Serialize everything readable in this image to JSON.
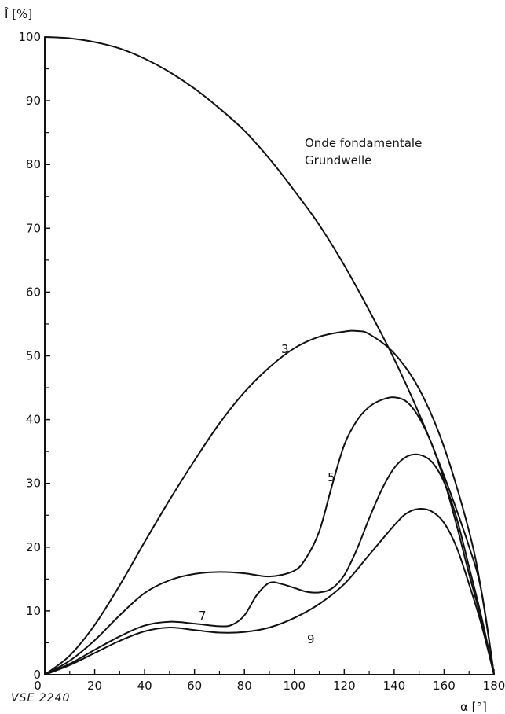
{
  "chart_data": {
    "type": "line",
    "title": "",
    "ylabel": "Î [%]",
    "xlabel": "α [°]",
    "xlim": [
      0,
      180
    ],
    "ylim": [
      0,
      100
    ],
    "xticks": [
      0,
      20,
      40,
      60,
      80,
      100,
      120,
      140,
      160,
      180
    ],
    "yticks": [
      0,
      10,
      20,
      30,
      40,
      50,
      60,
      70,
      80,
      90,
      100
    ],
    "grid": false,
    "annotation": "VSE 2240",
    "series": [
      {
        "name": "Onde fondamentale\nGrundwelle",
        "name_lines": [
          "Onde fondamentale",
          "Grundwelle"
        ],
        "points": [
          [
            0,
            100
          ],
          [
            10,
            99.8
          ],
          [
            20,
            99.2
          ],
          [
            30,
            98.2
          ],
          [
            40,
            96.6
          ],
          [
            50,
            94.5
          ],
          [
            60,
            91.9
          ],
          [
            70,
            88.8
          ],
          [
            80,
            85.3
          ],
          [
            90,
            80.9
          ],
          [
            100,
            75.9
          ],
          [
            110,
            70.5
          ],
          [
            120,
            64.2
          ],
          [
            130,
            57.1
          ],
          [
            140,
            49.5
          ],
          [
            150,
            40.9
          ],
          [
            160,
            31.2
          ],
          [
            170,
            20.1
          ],
          [
            175,
            13.0
          ],
          [
            180,
            0
          ]
        ]
      },
      {
        "name": "3",
        "points": [
          [
            0,
            0
          ],
          [
            10,
            3.0
          ],
          [
            20,
            7.8
          ],
          [
            30,
            14.0
          ],
          [
            40,
            20.8
          ],
          [
            50,
            27.4
          ],
          [
            60,
            33.6
          ],
          [
            70,
            39.4
          ],
          [
            80,
            44.3
          ],
          [
            90,
            48.2
          ],
          [
            100,
            51.2
          ],
          [
            110,
            53.0
          ],
          [
            120,
            53.8
          ],
          [
            125,
            53.9
          ],
          [
            130,
            53.4
          ],
          [
            140,
            50.4
          ],
          [
            150,
            44.8
          ],
          [
            160,
            35.7
          ],
          [
            170,
            22.5
          ],
          [
            175,
            13.0
          ],
          [
            180,
            0
          ]
        ]
      },
      {
        "name": "5",
        "points": [
          [
            0,
            0
          ],
          [
            10,
            2.2
          ],
          [
            20,
            5.4
          ],
          [
            30,
            9.3
          ],
          [
            40,
            12.8
          ],
          [
            50,
            14.8
          ],
          [
            60,
            15.8
          ],
          [
            70,
            16.1
          ],
          [
            80,
            15.9
          ],
          [
            90,
            15.4
          ],
          [
            100,
            16.3
          ],
          [
            105,
            18.5
          ],
          [
            110,
            22.5
          ],
          [
            115,
            29.5
          ],
          [
            120,
            36.0
          ],
          [
            125,
            39.8
          ],
          [
            130,
            42.0
          ],
          [
            135,
            43.1
          ],
          [
            140,
            43.5
          ],
          [
            145,
            42.8
          ],
          [
            150,
            40.3
          ],
          [
            155,
            36.2
          ],
          [
            160,
            30.5
          ],
          [
            165,
            23.5
          ],
          [
            170,
            15.8
          ],
          [
            175,
            8.5
          ],
          [
            180,
            0
          ]
        ]
      },
      {
        "name": "7",
        "points": [
          [
            0,
            0
          ],
          [
            10,
            1.7
          ],
          [
            20,
            3.9
          ],
          [
            30,
            6.0
          ],
          [
            40,
            7.7
          ],
          [
            50,
            8.3
          ],
          [
            60,
            8.0
          ],
          [
            70,
            7.6
          ],
          [
            75,
            7.8
          ],
          [
            80,
            9.3
          ],
          [
            85,
            12.5
          ],
          [
            90,
            14.4
          ],
          [
            95,
            14.2
          ],
          [
            100,
            13.6
          ],
          [
            105,
            13.0
          ],
          [
            110,
            12.9
          ],
          [
            115,
            13.5
          ],
          [
            120,
            15.6
          ],
          [
            125,
            19.6
          ],
          [
            130,
            24.5
          ],
          [
            135,
            29.0
          ],
          [
            140,
            32.4
          ],
          [
            145,
            34.2
          ],
          [
            150,
            34.5
          ],
          [
            155,
            33.4
          ],
          [
            160,
            30.2
          ],
          [
            165,
            24.6
          ],
          [
            170,
            16.9
          ],
          [
            175,
            9.0
          ],
          [
            180,
            0
          ]
        ]
      },
      {
        "name": "9",
        "points": [
          [
            0,
            0
          ],
          [
            10,
            1.5
          ],
          [
            20,
            3.4
          ],
          [
            30,
            5.3
          ],
          [
            40,
            6.8
          ],
          [
            50,
            7.4
          ],
          [
            60,
            7.0
          ],
          [
            70,
            6.6
          ],
          [
            80,
            6.7
          ],
          [
            90,
            7.4
          ],
          [
            100,
            8.9
          ],
          [
            110,
            11.1
          ],
          [
            120,
            14.2
          ],
          [
            130,
            18.8
          ],
          [
            140,
            23.4
          ],
          [
            145,
            25.3
          ],
          [
            150,
            26.0
          ],
          [
            155,
            25.6
          ],
          [
            160,
            23.8
          ],
          [
            165,
            20.0
          ],
          [
            170,
            14.2
          ],
          [
            175,
            7.8
          ],
          [
            180,
            0
          ]
        ]
      }
    ]
  }
}
